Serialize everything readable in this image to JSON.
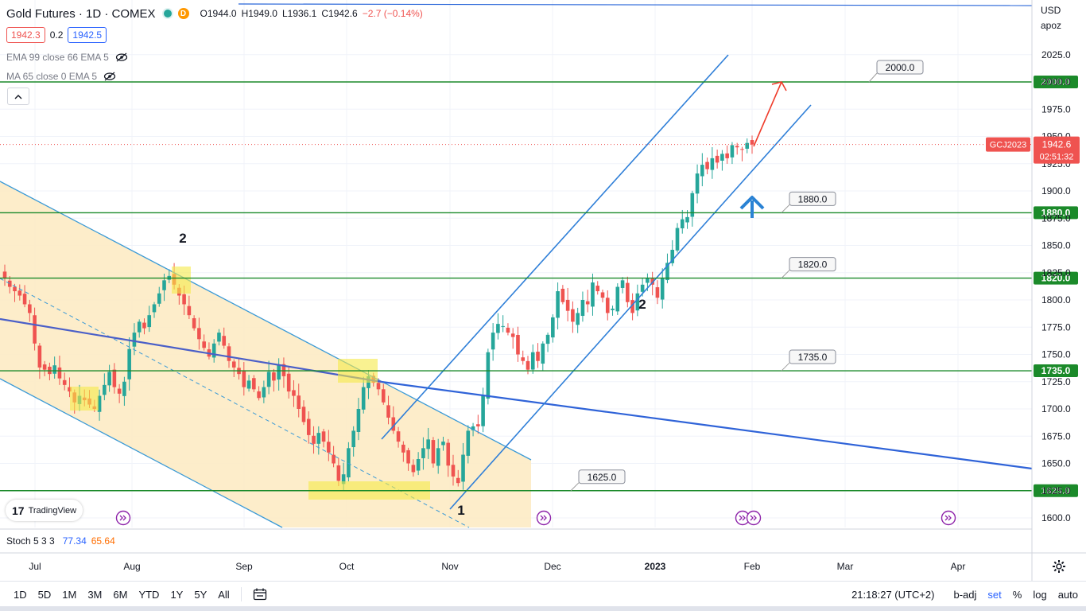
{
  "header": {
    "title": "Gold Futures · 1D · COMEX",
    "market_badge": "D",
    "open": "O1944.0",
    "high": "H1949.0",
    "low": "L1936.1",
    "close": "C1942.6",
    "change": "−2.7 (−0.14%)"
  },
  "quote": {
    "sell": "1942.3",
    "spread": "0.2",
    "buy": "1942.5"
  },
  "indicators": [
    {
      "label": "EMA 99 close 66 EMA 5",
      "icon": "eye-off-icon"
    },
    {
      "label": "MA 65 close 0 EMA 5",
      "icon": "eye-off-icon"
    }
  ],
  "collapse_icon": "chevron-up-icon",
  "watermark": "TradingView",
  "price_axis": {
    "currency": "USD",
    "scale_label": "apoz"
  },
  "current_price": {
    "symbol": "GCJ2023",
    "price": "1942.6",
    "countdown": "02:51:32"
  },
  "stochastic": {
    "label": "Stoch 5 3 3",
    "k": "77.34",
    "d": "65.64"
  },
  "bottom_bar": {
    "ranges": [
      "1D",
      "5D",
      "1M",
      "3M",
      "6M",
      "YTD",
      "1Y",
      "5Y",
      "All"
    ],
    "calendar_icon": "calendar-range-icon",
    "clock": "21:18:27 (UTC+2)",
    "toggles": [
      "b-adj",
      "set",
      "%",
      "log",
      "auto"
    ],
    "settings_icon": "gear-icon"
  },
  "colors": {
    "up": "#26a69a",
    "down": "#ef5350",
    "support": "#1b8a2a",
    "channel": "#2f7fd8",
    "trend": "#3a63d8",
    "highlight": "#f5e948",
    "zone": "#fdebc4",
    "arrow_up": "#2a82d4",
    "arrow_target": "#ef3b2a"
  },
  "chart_data": {
    "type": "candlestick",
    "title": "Gold Futures · 1D · COMEX",
    "xlabel": "",
    "ylabel": "",
    "x_ticks": [
      "Jul",
      "Aug",
      "Sep",
      "Oct",
      "Nov",
      "Dec",
      "2023",
      "Feb",
      "Mar",
      "Apr"
    ],
    "y_ticks": [
      "1600.0",
      "1625.0",
      "1650.0",
      "1675.0",
      "1700.0",
      "1725.0",
      "1750.0",
      "1775.0",
      "1800.0",
      "1825.0",
      "1850.0",
      "1875.0",
      "1900.0",
      "1925.0",
      "1950.0",
      "1975.0",
      "2000.0",
      "2025.0"
    ],
    "ylim": [
      1596,
      2055
    ],
    "support_levels": [
      {
        "value": 2000.0,
        "label": "2000.0"
      },
      {
        "value": 1880.0,
        "label": "1880.0"
      },
      {
        "value": 1820.0,
        "label": "1820.0"
      },
      {
        "value": 1735.0,
        "label": "1735.0"
      },
      {
        "value": 1625.0,
        "label": "1625.0"
      }
    ],
    "wave_labels": [
      "2",
      "2",
      "1"
    ],
    "closes": [
      1820,
      1812,
      1808,
      1804,
      1796,
      1788,
      1760,
      1738,
      1736,
      1732,
      1740,
      1728,
      1722,
      1716,
      1706,
      1712,
      1708,
      1704,
      1700,
      1712,
      1722,
      1734,
      1720,
      1714,
      1725,
      1755,
      1770,
      1780,
      1774,
      1786,
      1796,
      1806,
      1818,
      1822,
      1814,
      1804,
      1796,
      1786,
      1774,
      1764,
      1756,
      1748,
      1760,
      1770,
      1758,
      1744,
      1738,
      1732,
      1720,
      1726,
      1718,
      1710,
      1720,
      1734,
      1726,
      1740,
      1730,
      1716,
      1712,
      1700,
      1688,
      1676,
      1668,
      1678,
      1670,
      1660,
      1650,
      1634,
      1640,
      1664,
      1680,
      1700,
      1720,
      1730,
      1724,
      1718,
      1706,
      1692,
      1680,
      1670,
      1660,
      1650,
      1642,
      1654,
      1664,
      1672,
      1650,
      1664,
      1670,
      1648,
      1638,
      1632,
      1658,
      1680,
      1684,
      1684,
      1712,
      1752,
      1770,
      1778,
      1776,
      1770,
      1766,
      1750,
      1744,
      1736,
      1752,
      1744,
      1760,
      1768,
      1784,
      1808,
      1798,
      1790,
      1780,
      1788,
      1800,
      1796,
      1816,
      1808,
      1802,
      1788,
      1792,
      1812,
      1818,
      1798,
      1788,
      1806,
      1814,
      1820,
      1814,
      1802,
      1820,
      1834,
      1846,
      1866,
      1874,
      1876,
      1898,
      1916,
      1924,
      1920,
      1930,
      1926,
      1934,
      1930,
      1942,
      1940,
      1938,
      1944,
      1942.6
    ]
  }
}
